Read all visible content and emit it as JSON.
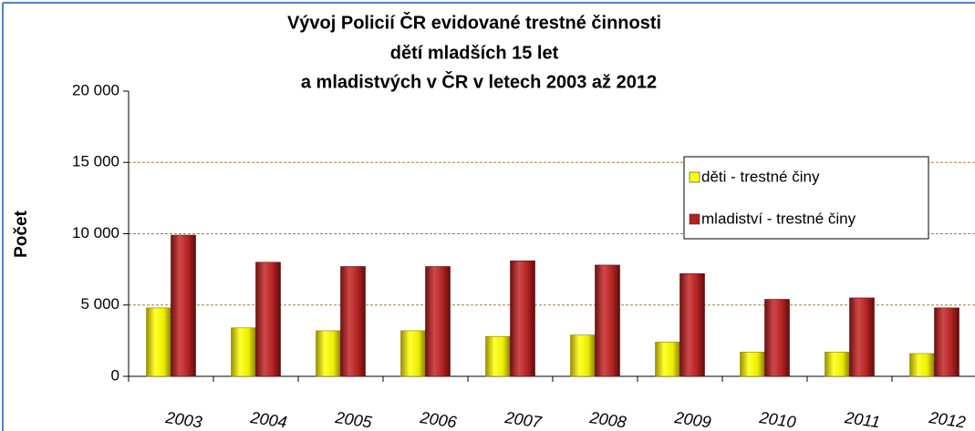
{
  "chart_data": {
    "type": "bar",
    "title": [
      "Vývoj  Policií ČR evidované trestné činnosti",
      "dětí mladších 15 let",
      "a  mladistvých v ČR v letech 2003 až 2012"
    ],
    "y_label": "Počet",
    "categories": [
      "2003",
      "2004",
      "2005",
      "2006",
      "2007",
      "2008",
      "2009",
      "2010",
      "2011",
      "2012"
    ],
    "series": [
      {
        "name": "děti - trestné činy",
        "color": "#ffff00",
        "values": [
          4800,
          3400,
          3200,
          3200,
          2800,
          2900,
          2400,
          1700,
          1700,
          1600
        ]
      },
      {
        "name": "mladiství - trestné činy",
        "color": "#b22222",
        "values": [
          9900,
          8000,
          7700,
          7700,
          8100,
          7800,
          7200,
          5400,
          5500,
          4800
        ]
      }
    ],
    "ylim": [
      0,
      20000
    ],
    "yticks": [
      {
        "value": 0,
        "label": "0"
      },
      {
        "value": 5000,
        "label": "5 000"
      },
      {
        "value": 10000,
        "label": "10 000"
      },
      {
        "value": 15000,
        "label": "15 000"
      },
      {
        "value": 20000,
        "label": "20 000"
      }
    ],
    "grid": true,
    "legend": "upper right"
  }
}
